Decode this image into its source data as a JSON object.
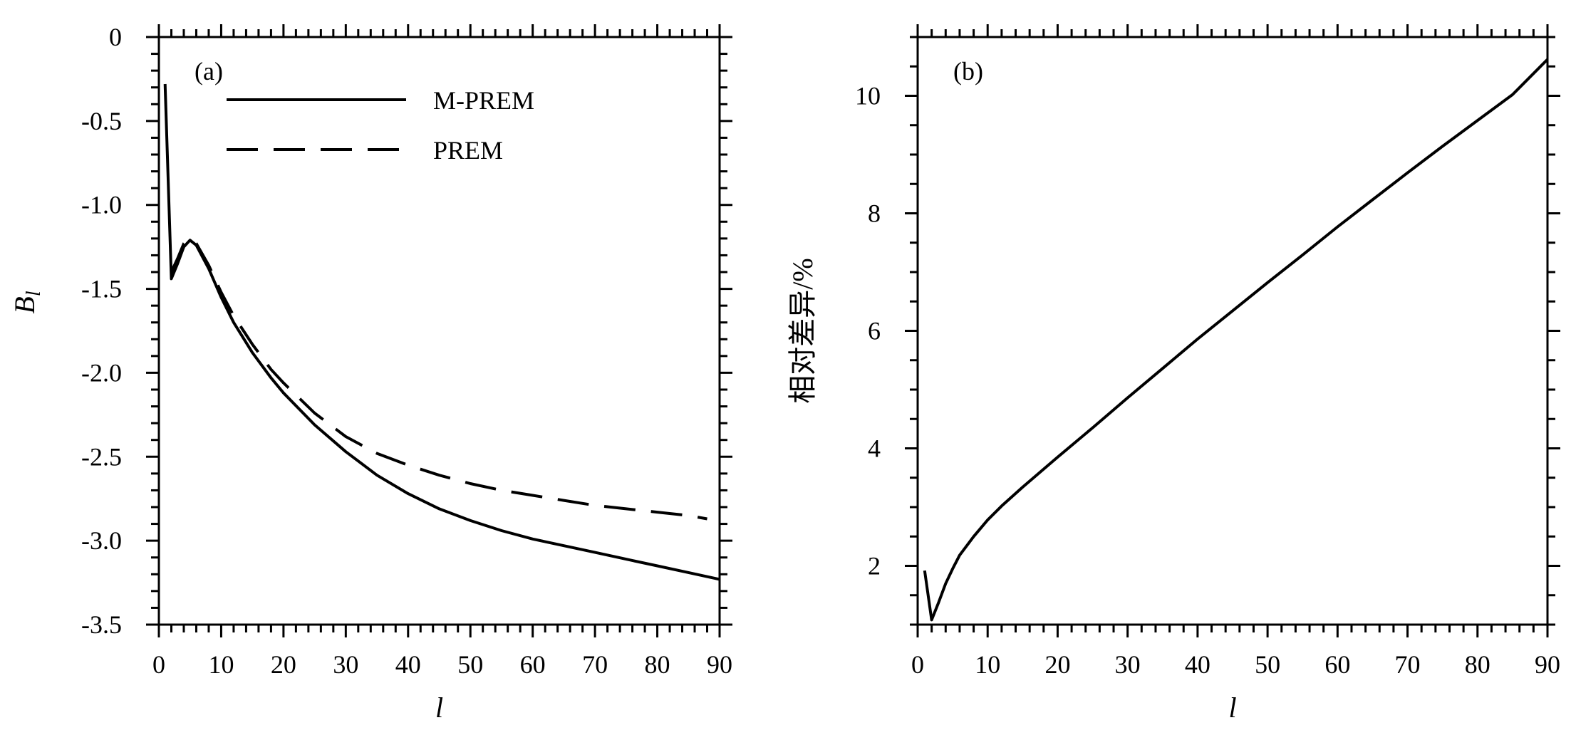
{
  "chart_data": [
    {
      "type": "line",
      "panel_label": "(a)",
      "xlabel": "l",
      "ylabel": "B",
      "ylabel_subscript": "l",
      "xlim": [
        0,
        90
      ],
      "ylim": [
        -3.5,
        0
      ],
      "xticks": [
        "0",
        "10",
        "20",
        "30",
        "40",
        "50",
        "60",
        "70",
        "80",
        "90"
      ],
      "yticks": [
        "0",
        "-0.5",
        "-1.0",
        "-1.5",
        "-2.0",
        "-2.5",
        "-3.0",
        "-3.5"
      ],
      "legend_position": "top-center",
      "series": [
        {
          "name": "M-PREM",
          "style": "solid",
          "x": [
            1,
            2,
            3,
            4,
            5,
            6,
            8,
            10,
            12,
            15,
            18,
            20,
            25,
            30,
            35,
            40,
            45,
            50,
            55,
            60,
            65,
            70,
            75,
            80,
            85,
            90
          ],
          "y": [
            -0.28,
            -1.44,
            -1.35,
            -1.25,
            -1.21,
            -1.24,
            -1.38,
            -1.55,
            -1.7,
            -1.88,
            -2.03,
            -2.12,
            -2.31,
            -2.47,
            -2.61,
            -2.72,
            -2.81,
            -2.88,
            -2.94,
            -2.99,
            -3.03,
            -3.07,
            -3.11,
            -3.15,
            -3.19,
            -3.23
          ]
        },
        {
          "name": "PREM",
          "style": "dashed",
          "x": [
            2,
            3,
            4,
            5,
            6,
            8,
            10,
            12,
            15,
            18,
            20,
            25,
            30,
            35,
            40,
            45,
            50,
            55,
            60,
            65,
            70,
            75,
            80,
            85,
            88
          ],
          "y": [
            -1.4,
            -1.32,
            -1.23,
            -1.2,
            -1.23,
            -1.36,
            -1.52,
            -1.66,
            -1.83,
            -1.98,
            -2.06,
            -2.24,
            -2.38,
            -2.48,
            -2.55,
            -2.61,
            -2.66,
            -2.7,
            -2.73,
            -2.76,
            -2.79,
            -2.81,
            -2.83,
            -2.85,
            -2.87
          ]
        }
      ]
    },
    {
      "type": "line",
      "panel_label": "(b)",
      "xlabel": "l",
      "ylabel": "相对差异/%",
      "xlim": [
        0,
        90
      ],
      "ylim": [
        1,
        11
      ],
      "xticks": [
        "0",
        "10",
        "20",
        "30",
        "40",
        "50",
        "60",
        "70",
        "80",
        "90"
      ],
      "yticks": [
        "2",
        "4",
        "6",
        "8",
        "10"
      ],
      "series": [
        {
          "style": "solid",
          "x": [
            1,
            2,
            3,
            4,
            5,
            6,
            8,
            10,
            12,
            15,
            20,
            25,
            30,
            35,
            40,
            45,
            50,
            55,
            60,
            65,
            70,
            75,
            80,
            85,
            90
          ],
          "y": [
            1.92,
            1.08,
            1.38,
            1.7,
            1.95,
            2.18,
            2.5,
            2.78,
            3.02,
            3.34,
            3.85,
            4.35,
            4.86,
            5.36,
            5.86,
            6.34,
            6.82,
            7.29,
            7.77,
            8.23,
            8.69,
            9.14,
            9.58,
            10.02,
            10.62
          ]
        }
      ]
    }
  ]
}
